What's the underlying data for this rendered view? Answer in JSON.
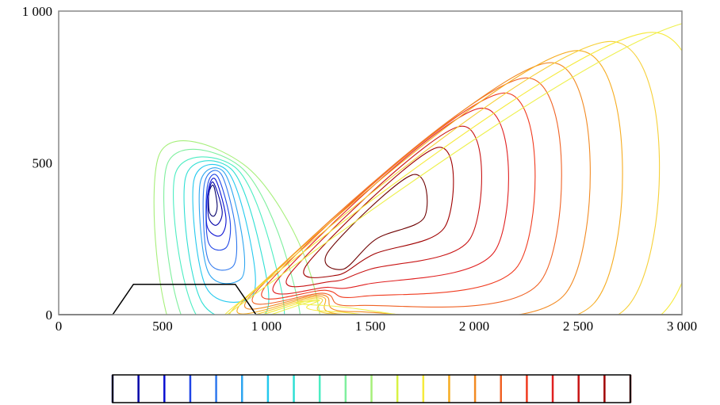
{
  "chart_data": {
    "type": "contour",
    "title": "",
    "xlabel": "",
    "ylabel": "",
    "xlim": [
      0,
      3000
    ],
    "ylim": [
      0,
      1000
    ],
    "x_ticks": [
      {
        "value": 0,
        "label": "0"
      },
      {
        "value": 500,
        "label": "500"
      },
      {
        "value": 1000,
        "label": "1 000"
      },
      {
        "value": 1500,
        "label": "1 500"
      },
      {
        "value": 2000,
        "label": "2 000"
      },
      {
        "value": 2500,
        "label": "2 500"
      },
      {
        "value": 3000,
        "label": "3 000"
      }
    ],
    "y_ticks": [
      {
        "value": 0,
        "label": "0"
      },
      {
        "value": 500,
        "label": "500"
      },
      {
        "value": 1000,
        "label": "1 000"
      }
    ],
    "grid": false,
    "colormap": "jet",
    "bottom_obstacle": [
      [
        0,
        0
      ],
      [
        260,
        0
      ],
      [
        360,
        100
      ],
      [
        850,
        100
      ],
      [
        950,
        0
      ],
      [
        3000,
        0
      ]
    ],
    "vortices": [
      {
        "name": "left",
        "rotation": "counter-clockwise",
        "center_x": 430,
        "center_y": 260,
        "colors": [
          "#04006a",
          "#0000a8",
          "#0a0fd2",
          "#1f45e6",
          "#2f78ee",
          "#2da5f0",
          "#24c9ee",
          "#2fdfd4",
          "#4cedc2",
          "#7fef9e",
          "#a6ef7a"
        ],
        "contours": [
          [
            [
              293,
              140
            ],
            [
              295,
              80
            ],
            [
              318,
              65
            ],
            [
              333,
              98
            ],
            [
              315,
              165
            ]
          ],
          [
            [
              293,
              140
            ],
            [
              292,
              60
            ],
            [
              330,
              35
            ],
            [
              357,
              80
            ],
            [
              315,
              175
            ]
          ],
          [
            [
              290,
              150
            ],
            [
              285,
              30
            ],
            [
              348,
              0
            ],
            [
              375,
              60
            ],
            [
              325,
              185
            ]
          ],
          [
            [
              285,
              160
            ],
            [
              290,
              -20
            ],
            [
              375,
              -40
            ],
            [
              395,
              50
            ],
            [
              335,
              195
            ]
          ],
          [
            [
              270,
              165
            ],
            [
              290,
              -80
            ],
            [
              410,
              -100
            ],
            [
              420,
              30
            ],
            [
              350,
              205
            ]
          ],
          [
            [
              250,
              170
            ],
            [
              290,
              -120
            ],
            [
              450,
              -140
            ],
            [
              450,
              10
            ],
            [
              365,
              210
            ]
          ],
          [
            [
              220,
              180
            ],
            [
              280,
              -170
            ],
            [
              500,
              -200
            ],
            [
              490,
              -10
            ],
            [
              380,
              215
            ]
          ],
          [
            [
              180,
              190
            ],
            [
              260,
              -220
            ],
            [
              560,
              -260
            ],
            [
              540,
              -40
            ],
            [
              400,
              220
            ]
          ],
          [
            [
              130,
              200
            ],
            [
              240,
              -270
            ],
            [
              630,
              -320
            ],
            [
              600,
              -60
            ],
            [
              420,
              225
            ]
          ],
          [
            [
              90,
              230
            ],
            [
              200,
              -320
            ],
            [
              700,
              -380
            ],
            [
              670,
              -80
            ],
            [
              440,
              230
            ]
          ],
          [
            [
              50,
              260
            ],
            [
              160,
              -380
            ],
            [
              780,
              -440
            ],
            [
              770,
              -100
            ],
            [
              460,
              235
            ]
          ]
        ]
      },
      {
        "name": "right",
        "rotation": "clockwise",
        "center_x": 1600,
        "center_y": 330,
        "colors": [
          "#6e0000",
          "#a00000",
          "#c81414",
          "#e02020",
          "#f03a1e",
          "#f06224",
          "#f28a22",
          "#f6ac20",
          "#f6d038",
          "#f6ea3c",
          "#eef04c"
        ],
        "contours": [
          [
            [
              -230,
              -180
            ],
            [
              -70,
              -80
            ],
            [
              160,
              -10
            ],
            [
              100,
              130
            ],
            [
              -300,
              -120
            ]
          ],
          [
            [
              -260,
              -200
            ],
            [
              -80,
              -130
            ],
            [
              260,
              -40
            ],
            [
              220,
              220
            ],
            [
              -400,
              -160
            ]
          ],
          [
            [
              -280,
              -220
            ],
            [
              -100,
              -180
            ],
            [
              380,
              -80
            ],
            [
              330,
              290
            ],
            [
              -480,
              -190
            ]
          ],
          [
            [
              -300,
              -240
            ],
            [
              -120,
              -230
            ],
            [
              500,
              -120
            ],
            [
              430,
              350
            ],
            [
              -540,
              -210
            ]
          ],
          [
            [
              -310,
              -250
            ],
            [
              -140,
              -270
            ],
            [
              610,
              -170
            ],
            [
              540,
              400
            ],
            [
              -590,
              -225
            ]
          ],
          [
            [
              -320,
              -260
            ],
            [
              -160,
              -300
            ],
            [
              720,
              -220
            ],
            [
              650,
              450
            ],
            [
              -630,
              -240
            ]
          ],
          [
            [
              -330,
              -265
            ],
            [
              -180,
              -320
            ],
            [
              840,
              -260
            ],
            [
              770,
              500
            ],
            [
              -660,
              -255
            ]
          ],
          [
            [
              -340,
              -270
            ],
            [
              -200,
              -330
            ],
            [
              980,
              -290
            ],
            [
              900,
              540
            ],
            [
              -690,
              -270
            ]
          ],
          [
            [
              -350,
              -275
            ],
            [
              -230,
              -330
            ],
            [
              1130,
              -310
            ],
            [
              1060,
              570
            ],
            [
              -720,
              -285
            ]
          ],
          [
            [
              -360,
              -280
            ],
            [
              -280,
              -320
            ],
            [
              1300,
              -330
            ],
            [
              1260,
              600
            ],
            [
              -750,
              -300
            ]
          ],
          [
            [
              -370,
              -285
            ],
            [
              -320,
              -300
            ],
            [
              1500,
              -340
            ],
            [
              1500,
              640
            ],
            [
              -770,
              -320
            ]
          ]
        ]
      }
    ],
    "colorbar": {
      "orientation": "horizontal",
      "colors": [
        "#04006a",
        "#0000a8",
        "#0a0fd2",
        "#1f45e6",
        "#2f78ee",
        "#2da5f0",
        "#24c9ee",
        "#2fdfd4",
        "#4cedc2",
        "#7fef9e",
        "#a6ef7a",
        "#d8f244",
        "#f6ea3c",
        "#f6ac20",
        "#f28a22",
        "#f06224",
        "#f03a1e",
        "#e02020",
        "#c81414",
        "#a00000",
        "#6e0000"
      ]
    },
    "frame_color": "#888888",
    "obstacle_color": "#000000"
  }
}
